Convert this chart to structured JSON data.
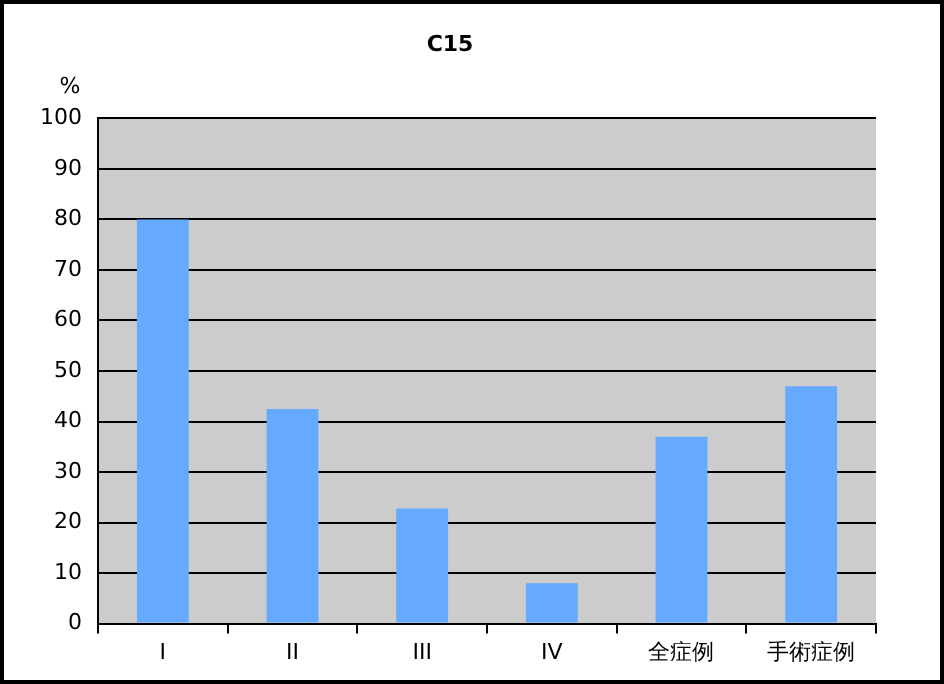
{
  "chart_data": {
    "type": "bar",
    "title": "C15",
    "ylabel": "%",
    "categories": [
      "I",
      "II",
      "III",
      "IV",
      "全症例",
      "手術症例"
    ],
    "values": [
      80,
      42.5,
      22.8,
      8,
      37,
      47
    ],
    "color": "#66aaff",
    "ylim": [
      0,
      100
    ],
    "yticks": [
      0,
      10,
      20,
      30,
      40,
      50,
      60,
      70,
      80,
      90,
      100
    ],
    "grid": "y",
    "legend": false
  }
}
